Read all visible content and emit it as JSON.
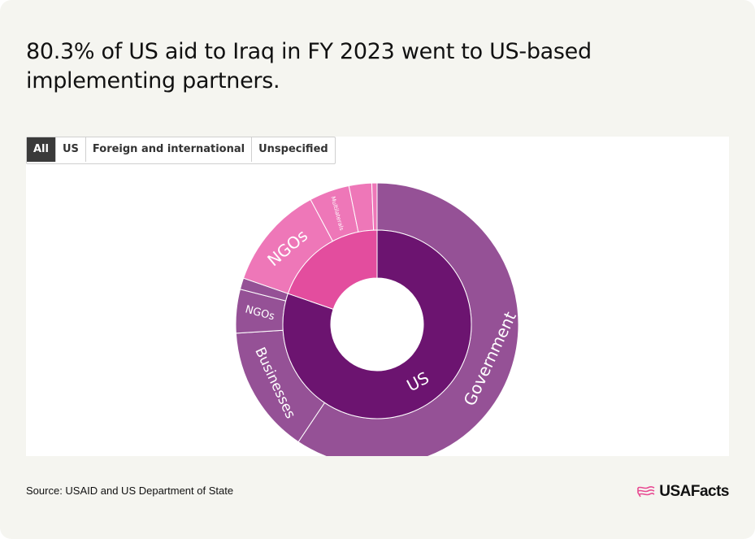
{
  "title": "80.3% of US aid to Iraq in FY 2023 went to US-based implementing partners.",
  "tabs": [
    {
      "label": "All",
      "active": true
    },
    {
      "label": "US",
      "active": false
    },
    {
      "label": "Foreign and international",
      "active": false
    },
    {
      "label": "Unspecified",
      "active": false
    }
  ],
  "source": "Source: USAID and US Department of State",
  "logo": {
    "text": "USAFacts",
    "icon": "usa-flag-icon",
    "color": "#e84a92"
  },
  "chart_data": {
    "type": "sunburst",
    "colors": {
      "us_inner": "#6c1470",
      "us_outer": "#955196",
      "foreign_inner": "#e34d9e",
      "foreign_outer": "#ee77b8"
    },
    "inner": [
      {
        "label": "US",
        "share": 80.3,
        "color": "#6c1470"
      },
      {
        "label": "",
        "share": 19.7,
        "color": "#e34d9e"
      }
    ],
    "outer": [
      {
        "label": "Government",
        "parent": "US",
        "share": 59.4,
        "color": "#955196"
      },
      {
        "label": "Businesses",
        "parent": "US",
        "share": 14.6,
        "color": "#955196"
      },
      {
        "label": "NGOs",
        "parent": "US",
        "share": 5.0,
        "color": "#955196"
      },
      {
        "label": "",
        "parent": "US",
        "share": 1.3,
        "color": "#955196"
      },
      {
        "label": "NGOs",
        "parent": "Foreign and international",
        "share": 11.9,
        "color": "#ee77b8"
      },
      {
        "label": "Multilaterals",
        "parent": "Foreign and international",
        "share": 4.6,
        "color": "#ee77b8"
      },
      {
        "label": "",
        "parent": "Foreign and international",
        "share": 2.6,
        "color": "#ee77b8"
      },
      {
        "label": "",
        "parent": "Foreign and international",
        "share": 0.6,
        "color": "#ee77b8"
      }
    ]
  }
}
